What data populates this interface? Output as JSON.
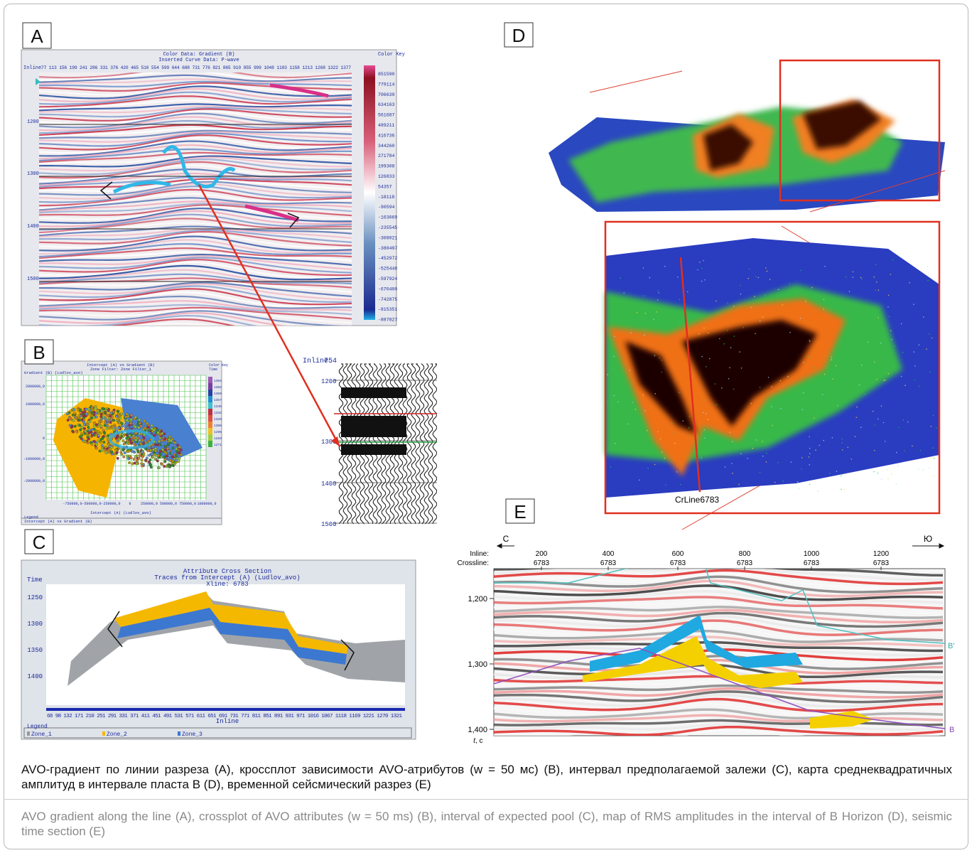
{
  "panels": {
    "a": {
      "label": "A",
      "title": "Color Data: Gradient (B)",
      "subtitle": "Inserted Curve Data: P-wave",
      "color_key_title": "Color Key",
      "inline_label": "Inline",
      "inline_values": "77 113 156 199 241 286 331 376 420 465 510 554 599 644 688 731 776 821 865 910 955 999 1048 1103 1158 1213 1268 1322 1377",
      "time_ticks": [
        "1200",
        "1300",
        "1400",
        "1500"
      ],
      "color_key_values": [
        "851590",
        "779114",
        "706639",
        "634163",
        "561687",
        "489211",
        "416736",
        "344260",
        "271784",
        "199308",
        "126833",
        "54357",
        "-18118",
        "-90594",
        "-163069",
        "-235545",
        "-308021",
        "-380497",
        "-452972",
        "-525448",
        "-597924",
        "-670400",
        "-742875",
        "-815351",
        "-887827"
      ]
    },
    "b": {
      "label": "B",
      "title": "Intercept (A) vs Gradient (B)",
      "subtitle": "Zone Filter: Zone Filter_1",
      "y_label": "Gradient (B) (Ludlov_avo)",
      "y_ticks": [
        "2000000,0",
        "1000000,0",
        "0",
        "-1000000,0",
        "-2000000,0"
      ],
      "x_ticks": [
        "-750000,0",
        "-500000,0",
        "-250000,0",
        "0",
        "250000,0",
        "500000,0",
        "750000,0",
        "1000000,0"
      ],
      "x_label": "Intercept (A) (Ludlov_avo)",
      "color_key_title": "Color Key",
      "color_key_unit": "Time",
      "color_key_values": [
        "1394",
        "1382",
        "1369",
        "1357",
        "1345",
        "1332",
        "1320",
        "1308",
        "1296",
        "1283",
        "1271"
      ],
      "legend_title": "Legend",
      "legend_entry": "Intercept (A) vs Gradient (B)"
    },
    "inline754": {
      "label": "Inline",
      "number": "754",
      "time_ticks": [
        "1200",
        "1300",
        "1400",
        "1500"
      ]
    },
    "c": {
      "label": "C",
      "title": "Attribute Cross Section",
      "subtitle": "Traces from Intercept (A) (Ludlov_avo)",
      "xline": "Xline: 6783",
      "y_label": "Time",
      "y_ticks": [
        "1250",
        "1300",
        "1350",
        "1400"
      ],
      "x_ticks": "68 98 132 171 210 251 291 331 371 411 451 491 531 571 611 651 691 731 771 811 851 891 931 971 1016 1067 1118 1169 1221 1270 1321",
      "x_label": "Inline",
      "legend_title": "Legend",
      "zones": [
        "Zone_1",
        "Zone_2",
        "Zone_3"
      ]
    },
    "d": {
      "label": "D",
      "line_label": "CrLine6783"
    },
    "e": {
      "label": "E",
      "left_dir": "С",
      "right_dir": "Ю",
      "inline_label": "Inline:",
      "crossline_label": "Crossline:",
      "inlines": [
        "200",
        "400",
        "600",
        "800",
        "1000",
        "1200"
      ],
      "crosslines": [
        "6783",
        "6783",
        "6783",
        "6783",
        "6783",
        "6783"
      ],
      "y_ticks": [
        "1,200",
        "1,300",
        "1,400"
      ],
      "y_unit_symbol": "t",
      "y_unit_rest": ", с",
      "horizons": [
        "B′",
        "B"
      ]
    }
  },
  "caption": {
    "ru": "AVO-градиент по линии разреза (А), кроссплот зависимости AVO-атрибутов (w = 50 мс) (B), интервал предполагаемой залежи (С), карта среднеквадратичных амплитуд в интервале пласта В (D), временной сейсмический разрез (Е)",
    "en": "AVO gradient along the line (A), crossplot of AVO attributes (w = 50 ms) (B), interval of expected pool (C), map of RMS amplitudes in the interval of B Horizon (D), seismic time section (E)"
  }
}
